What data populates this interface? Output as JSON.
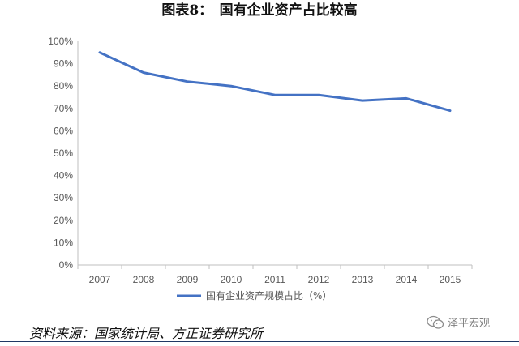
{
  "figure_title": "图表8：　国有企业资产占比较高",
  "source_note": "资料来源：国家统计局、方正证券研究所",
  "watermark": {
    "icon": "wechat-icon",
    "text": "泽平宏观"
  },
  "colors": {
    "series": "#4472c4",
    "axis": "#bfbfbf",
    "tick_text": "#595959"
  },
  "chart_data": {
    "type": "line",
    "categories": [
      "2007",
      "2008",
      "2009",
      "2010",
      "2011",
      "2012",
      "2013",
      "2014",
      "2015"
    ],
    "series": [
      {
        "name": "国有企业资产规模占比（%）",
        "values": [
          95,
          86,
          82,
          80,
          76,
          76,
          73.5,
          74.5,
          69
        ]
      }
    ],
    "ylim": [
      0,
      100
    ],
    "yticks": [
      "0%",
      "10%",
      "20%",
      "30%",
      "40%",
      "50%",
      "60%",
      "70%",
      "80%",
      "90%",
      "100%"
    ],
    "grid": false,
    "legend": "bottom"
  }
}
